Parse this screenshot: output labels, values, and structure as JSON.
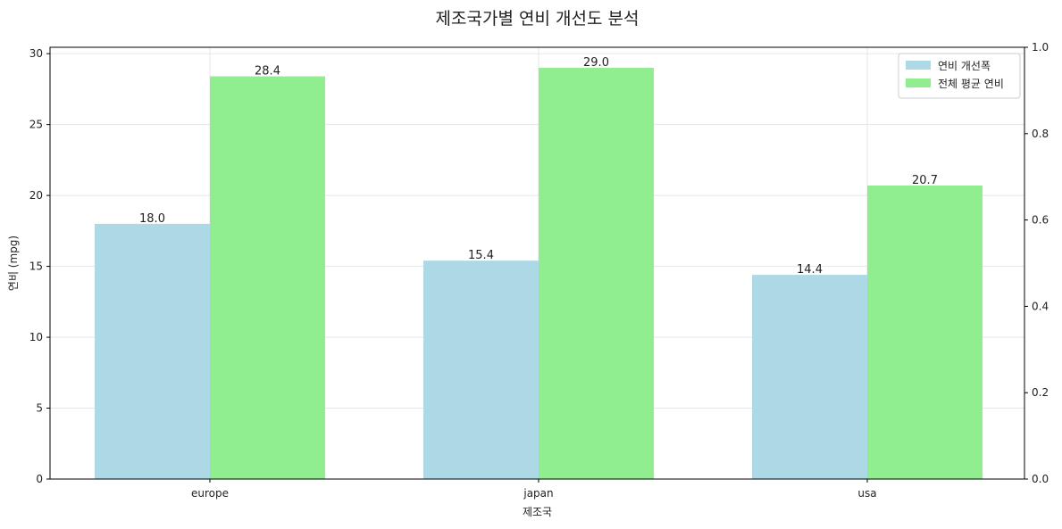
{
  "chart_data": {
    "type": "bar",
    "title": "제조국가별 연비 개선도 분석",
    "xlabel": "제조국",
    "ylabel": "연비 (mpg)",
    "categories": [
      "europe",
      "japan",
      "usa"
    ],
    "series": [
      {
        "name": "연비 개선폭",
        "values": [
          18.0,
          15.4,
          14.4
        ],
        "color": "#add8e6"
      },
      {
        "name": "전체 평균 연비",
        "values": [
          28.4,
          29.0,
          20.7
        ],
        "color": "#90ee90"
      }
    ],
    "ylim": [
      0,
      30.45
    ],
    "yticks": [
      0,
      5,
      10,
      15,
      20,
      25,
      30
    ],
    "y2lim": [
      0,
      1
    ],
    "y2ticks": [
      "0.0",
      "0.2",
      "0.4",
      "0.6",
      "0.8",
      "1.0"
    ],
    "grid": true,
    "legend_position": "top-right"
  }
}
